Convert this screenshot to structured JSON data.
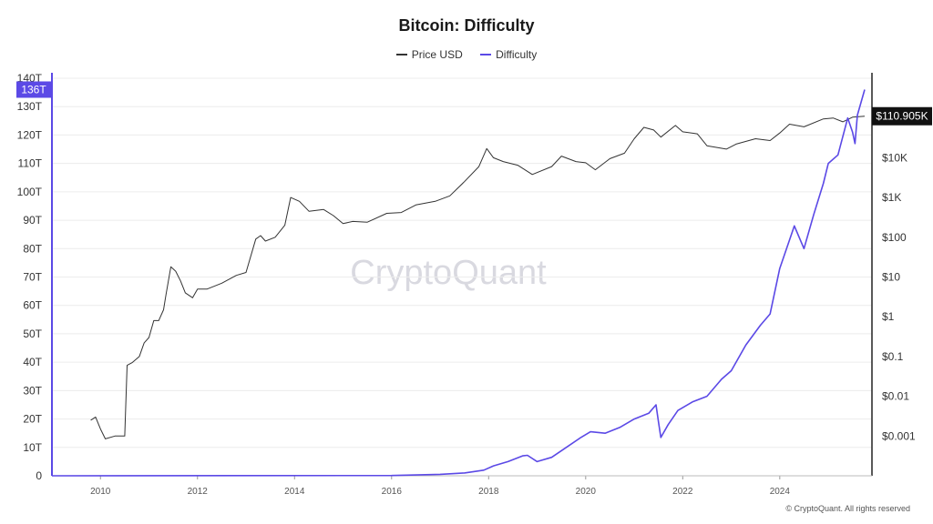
{
  "chart_data": {
    "type": "line",
    "title": "Bitcoin: Difficulty",
    "watermark": "CryptoQuant",
    "copyright": "© CryptoQuant. All rights reserved",
    "grid": true,
    "legend_position": "top-center",
    "x_axis": {
      "type": "time",
      "range": [
        2009.0,
        2025.9
      ],
      "ticks": [
        "2010",
        "2012",
        "2014",
        "2016",
        "2018",
        "2020",
        "2022",
        "2024"
      ]
    },
    "y_left": {
      "label": "",
      "range": [
        0,
        140
      ],
      "unit": "T",
      "ticks": [
        "0",
        "10T",
        "20T",
        "30T",
        "40T",
        "50T",
        "60T",
        "70T",
        "80T",
        "90T",
        "100T",
        "110T",
        "120T",
        "130T",
        "140T"
      ],
      "current_marker": "136T",
      "current_value": 136
    },
    "y_right": {
      "label": "",
      "scale": "log",
      "range": [
        0.0001,
        1000000
      ],
      "ticks": [
        "$0.001",
        "$0.01",
        "$0.1",
        "$1",
        "$10",
        "$100",
        "$1K",
        "$10K"
      ],
      "current_marker": "$110.905K",
      "current_value": 110905
    },
    "series": [
      {
        "name": "Price USD",
        "axis": "right",
        "color": "#333333",
        "points": [
          [
            2009.8,
            0.0025
          ],
          [
            2009.9,
            0.003
          ],
          [
            2010.0,
            0.0015
          ],
          [
            2010.1,
            0.00085
          ],
          [
            2010.3,
            0.001
          ],
          [
            2010.5,
            0.001
          ],
          [
            2010.55,
            0.06
          ],
          [
            2010.65,
            0.07
          ],
          [
            2010.8,
            0.1
          ],
          [
            2010.9,
            0.22
          ],
          [
            2011.0,
            0.3
          ],
          [
            2011.1,
            0.8
          ],
          [
            2011.2,
            0.8
          ],
          [
            2011.3,
            1.5
          ],
          [
            2011.35,
            3.5
          ],
          [
            2011.45,
            18
          ],
          [
            2011.55,
            14
          ],
          [
            2011.65,
            8
          ],
          [
            2011.75,
            4
          ],
          [
            2011.9,
            3
          ],
          [
            2012.0,
            5
          ],
          [
            2012.2,
            5
          ],
          [
            2012.5,
            7
          ],
          [
            2012.8,
            11
          ],
          [
            2013.0,
            13
          ],
          [
            2013.2,
            90
          ],
          [
            2013.3,
            110
          ],
          [
            2013.4,
            80
          ],
          [
            2013.6,
            100
          ],
          [
            2013.8,
            200
          ],
          [
            2013.92,
            1000
          ],
          [
            2014.1,
            800
          ],
          [
            2014.3,
            450
          ],
          [
            2014.6,
            500
          ],
          [
            2014.8,
            350
          ],
          [
            2015.0,
            220
          ],
          [
            2015.2,
            250
          ],
          [
            2015.5,
            240
          ],
          [
            2015.9,
            400
          ],
          [
            2016.2,
            420
          ],
          [
            2016.5,
            650
          ],
          [
            2016.9,
            800
          ],
          [
            2017.2,
            1100
          ],
          [
            2017.5,
            2500
          ],
          [
            2017.8,
            6000
          ],
          [
            2017.96,
            17000
          ],
          [
            2018.1,
            10000
          ],
          [
            2018.3,
            8000
          ],
          [
            2018.6,
            6500
          ],
          [
            2018.9,
            3800
          ],
          [
            2019.3,
            6000
          ],
          [
            2019.5,
            11000
          ],
          [
            2019.8,
            8000
          ],
          [
            2020.0,
            7500
          ],
          [
            2020.2,
            5000
          ],
          [
            2020.5,
            9500
          ],
          [
            2020.8,
            13000
          ],
          [
            2021.0,
            30000
          ],
          [
            2021.2,
            58000
          ],
          [
            2021.4,
            50000
          ],
          [
            2021.55,
            33000
          ],
          [
            2021.85,
            65000
          ],
          [
            2022.0,
            45000
          ],
          [
            2022.3,
            40000
          ],
          [
            2022.5,
            20000
          ],
          [
            2022.9,
            16500
          ],
          [
            2023.1,
            22000
          ],
          [
            2023.5,
            30000
          ],
          [
            2023.8,
            27000
          ],
          [
            2024.0,
            42000
          ],
          [
            2024.2,
            70000
          ],
          [
            2024.5,
            60000
          ],
          [
            2024.9,
            95000
          ],
          [
            2025.1,
            100000
          ],
          [
            2025.3,
            80000
          ],
          [
            2025.5,
            105000
          ],
          [
            2025.75,
            110905
          ]
        ]
      },
      {
        "name": "Difficulty",
        "axis": "left",
        "color": "#5b49e6",
        "points": [
          [
            2009.0,
            0.0
          ],
          [
            2016.0,
            0.1
          ],
          [
            2017.0,
            0.5
          ],
          [
            2017.5,
            1.0
          ],
          [
            2017.9,
            2.0
          ],
          [
            2018.1,
            3.5
          ],
          [
            2018.4,
            5.0
          ],
          [
            2018.7,
            7.0
          ],
          [
            2018.8,
            7.2
          ],
          [
            2019.0,
            5.0
          ],
          [
            2019.3,
            6.5
          ],
          [
            2019.6,
            10.0
          ],
          [
            2019.9,
            13.5
          ],
          [
            2020.1,
            15.5
          ],
          [
            2020.4,
            15.0
          ],
          [
            2020.7,
            17.0
          ],
          [
            2021.0,
            20.0
          ],
          [
            2021.3,
            22.0
          ],
          [
            2021.45,
            25.0
          ],
          [
            2021.5,
            19.0
          ],
          [
            2021.55,
            13.5
          ],
          [
            2021.7,
            18.0
          ],
          [
            2021.9,
            23.0
          ],
          [
            2022.2,
            26.0
          ],
          [
            2022.5,
            28.0
          ],
          [
            2022.8,
            34.0
          ],
          [
            2023.0,
            37.0
          ],
          [
            2023.3,
            46.0
          ],
          [
            2023.6,
            53.0
          ],
          [
            2023.8,
            57.0
          ],
          [
            2024.0,
            73.0
          ],
          [
            2024.2,
            83.0
          ],
          [
            2024.3,
            88.0
          ],
          [
            2024.5,
            80.0
          ],
          [
            2024.7,
            92.0
          ],
          [
            2024.9,
            103.0
          ],
          [
            2025.0,
            110.0
          ],
          [
            2025.2,
            113.0
          ],
          [
            2025.4,
            126.0
          ],
          [
            2025.5,
            121.0
          ],
          [
            2025.55,
            117.0
          ],
          [
            2025.6,
            127.0
          ],
          [
            2025.75,
            136.0
          ]
        ]
      }
    ]
  }
}
